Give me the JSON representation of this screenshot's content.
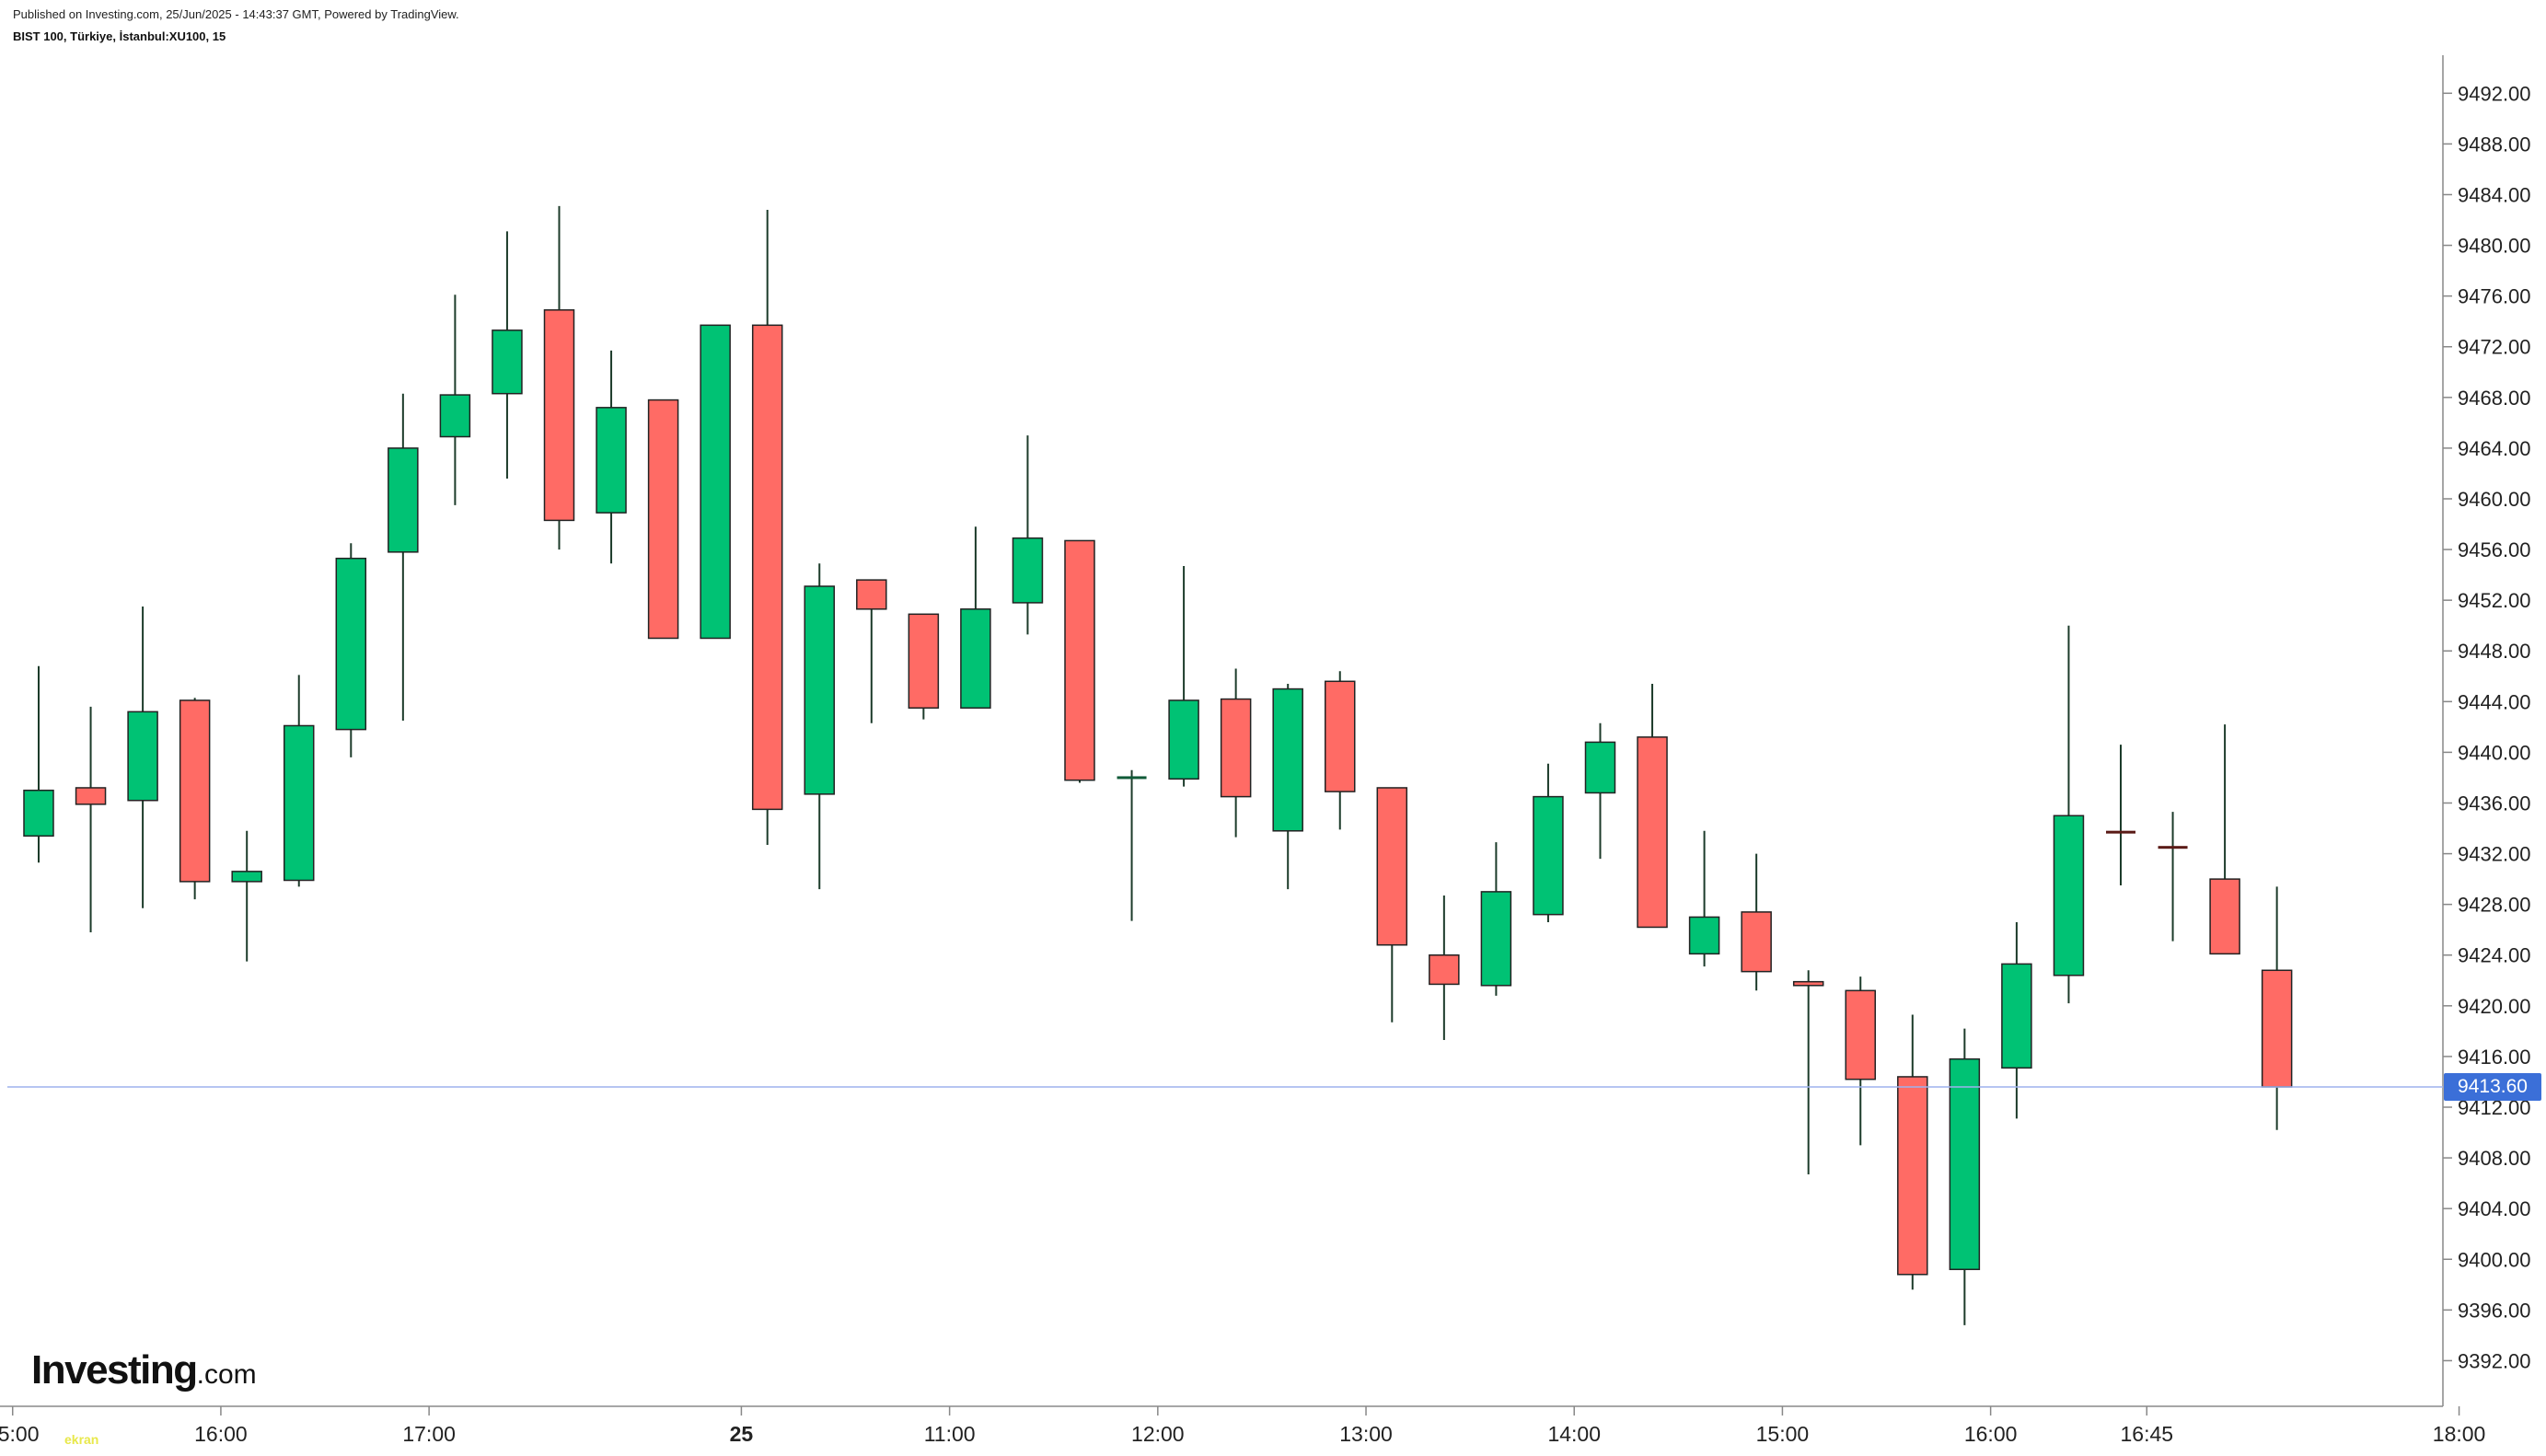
{
  "header": {
    "published": "Published on Investing.com, 25/Jun/2025 - 14:43:37 GMT, Powered by TradingView.",
    "symbol": "BIST 100, Türkiye, İstanbul:XU100, 15"
  },
  "logo": {
    "brand": "Investing",
    "tld": ".com"
  },
  "watermark": "ekran",
  "current_price": {
    "label": "9413.60",
    "value": 9413.6,
    "color": "#3b6fd8"
  },
  "colors": {
    "up": "#00c274",
    "down": "#ff6b65",
    "wick": "#1c3b2a",
    "grid": "#cfcfcf",
    "price_line": "#9db2ee"
  },
  "chart_data": {
    "type": "candlestick",
    "title": "",
    "xlabel": "",
    "ylabel": "",
    "ylim": [
      9388.4,
      9495
    ],
    "yticks": [
      9392,
      9396,
      9400,
      9404,
      9408,
      9412,
      9416,
      9420,
      9424,
      9428,
      9432,
      9436,
      9440,
      9444,
      9448,
      9452,
      9456,
      9460,
      9464,
      9468,
      9472,
      9476,
      9480,
      9484,
      9488,
      9492
    ],
    "ytick_labels": [
      "9392.00",
      "9396.00",
      "9400.00",
      "9404.00",
      "9408.00",
      "9412.00",
      "9416.00",
      "9420.00",
      "9424.00",
      "9428.00",
      "9432.00",
      "9436.00",
      "9440.00",
      "9444.00",
      "9448.00",
      "9452.00",
      "9456.00",
      "9460.00",
      "9464.00",
      "9468.00",
      "9472.00",
      "9476.00",
      "9480.00",
      "9484.00",
      "9488.00",
      "9492.00"
    ],
    "xticks": [
      {
        "label": "15:00",
        "index": -0.5
      },
      {
        "label": "16:00",
        "index": 3.5
      },
      {
        "label": "17:00",
        "index": 7.5
      },
      {
        "label": "25",
        "index": 13.5
      },
      {
        "label": "11:00",
        "index": 17.5
      },
      {
        "label": "12:00",
        "index": 21.5
      },
      {
        "label": "13:00",
        "index": 25.5
      },
      {
        "label": "14:00",
        "index": 29.5
      },
      {
        "label": "15:00",
        "index": 33.5
      },
      {
        "label": "16:00",
        "index": 37.5
      },
      {
        "label": "16:45",
        "index": 40.5
      },
      {
        "label": "18:00",
        "index": 46.5
      }
    ],
    "candles": [
      {
        "o": 9433.4,
        "h": 9446.8,
        "l": 9431.3,
        "c": 9437.0
      },
      {
        "o": 9437.2,
        "h": 9443.6,
        "l": 9425.8,
        "c": 9435.9
      },
      {
        "o": 9436.2,
        "h": 9451.5,
        "l": 9427.7,
        "c": 9443.2
      },
      {
        "o": 9444.1,
        "h": 9444.3,
        "l": 9428.4,
        "c": 9429.8
      },
      {
        "o": 9429.8,
        "h": 9433.8,
        "l": 9423.5,
        "c": 9430.6
      },
      {
        "o": 9429.9,
        "h": 9446.1,
        "l": 9429.4,
        "c": 9442.1
      },
      {
        "o": 9441.8,
        "h": 9456.5,
        "l": 9439.6,
        "c": 9455.3
      },
      {
        "o": 9455.8,
        "h": 9468.3,
        "l": 9442.5,
        "c": 9464.0
      },
      {
        "o": 9464.9,
        "h": 9476.1,
        "l": 9459.5,
        "c": 9468.2
      },
      {
        "o": 9468.3,
        "h": 9481.1,
        "l": 9461.6,
        "c": 9473.3
      },
      {
        "o": 9474.9,
        "h": 9483.1,
        "l": 9456.0,
        "c": 9458.3
      },
      {
        "o": 9458.9,
        "h": 9471.7,
        "l": 9454.9,
        "c": 9467.2
      },
      {
        "o": 9467.8,
        "h": 9467.8,
        "l": 9449.0,
        "c": 9449.0
      },
      {
        "o": 9449.0,
        "h": 9473.7,
        "l": 9449.0,
        "c": 9473.7
      },
      {
        "o": 9473.7,
        "h": 9482.8,
        "l": 9432.7,
        "c": 9435.5
      },
      {
        "o": 9436.7,
        "h": 9454.9,
        "l": 9429.2,
        "c": 9453.1
      },
      {
        "o": 9453.6,
        "h": 9453.6,
        "l": 9442.3,
        "c": 9451.3
      },
      {
        "o": 9450.9,
        "h": 9450.9,
        "l": 9442.6,
        "c": 9443.5
      },
      {
        "o": 9443.5,
        "h": 9457.8,
        "l": 9443.5,
        "c": 9451.3
      },
      {
        "o": 9451.8,
        "h": 9465.0,
        "l": 9449.3,
        "c": 9456.9
      },
      {
        "o": 9456.7,
        "h": 9456.7,
        "l": 9437.6,
        "c": 9437.8
      },
      {
        "o": 9438.0,
        "h": 9438.6,
        "l": 9426.7,
        "c": 9438.0
      },
      {
        "o": 9437.9,
        "h": 9454.7,
        "l": 9437.3,
        "c": 9444.1
      },
      {
        "o": 9444.2,
        "h": 9446.6,
        "l": 9433.3,
        "c": 9436.5
      },
      {
        "o": 9433.8,
        "h": 9445.4,
        "l": 9429.2,
        "c": 9445.0
      },
      {
        "o": 9445.6,
        "h": 9446.4,
        "l": 9433.9,
        "c": 9436.9
      },
      {
        "o": 9437.2,
        "h": 9437.2,
        "l": 9418.7,
        "c": 9424.8
      },
      {
        "o": 9424.0,
        "h": 9428.7,
        "l": 9417.3,
        "c": 9421.7
      },
      {
        "o": 9421.6,
        "h": 9432.9,
        "l": 9420.8,
        "c": 9429.0
      },
      {
        "o": 9427.2,
        "h": 9439.1,
        "l": 9426.6,
        "c": 9436.5
      },
      {
        "o": 9436.8,
        "h": 9442.3,
        "l": 9431.6,
        "c": 9440.8
      },
      {
        "o": 9441.2,
        "h": 9445.4,
        "l": 9426.2,
        "c": 9426.2
      },
      {
        "o": 9424.1,
        "h": 9433.8,
        "l": 9423.1,
        "c": 9427.0
      },
      {
        "o": 9427.4,
        "h": 9432.0,
        "l": 9421.2,
        "c": 9422.7
      },
      {
        "o": 9421.9,
        "h": 9422.8,
        "l": 9406.7,
        "c": 9421.6
      },
      {
        "o": 9421.2,
        "h": 9422.3,
        "l": 9409.0,
        "c": 9414.2
      },
      {
        "o": 9414.4,
        "h": 9419.3,
        "l": 9397.6,
        "c": 9398.8
      },
      {
        "o": 9399.2,
        "h": 9418.2,
        "l": 9394.8,
        "c": 9415.8
      },
      {
        "o": 9415.1,
        "h": 9426.6,
        "l": 9411.1,
        "c": 9423.3
      },
      {
        "o": 9422.4,
        "h": 9450.0,
        "l": 9420.2,
        "c": 9435.0
      },
      {
        "o": 9433.7,
        "h": 9440.6,
        "l": 9429.5,
        "c": 9433.6
      },
      {
        "o": 9432.5,
        "h": 9435.3,
        "l": 9425.1,
        "c": 9432.4
      },
      {
        "o": 9430.0,
        "h": 9442.2,
        "l": 9424.1,
        "c": 9424.1
      },
      {
        "o": 9422.8,
        "h": 9429.4,
        "l": 9410.2,
        "c": 9413.6
      }
    ]
  }
}
